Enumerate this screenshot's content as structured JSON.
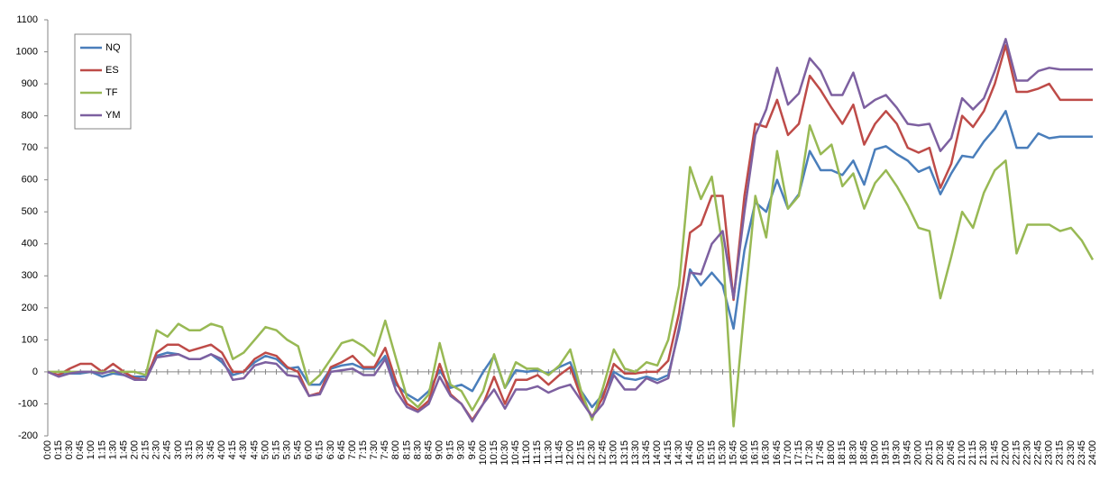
{
  "chart_data": {
    "type": "line",
    "categories": [
      "0:00",
      "0:15",
      "0:30",
      "0:45",
      "1:00",
      "1:15",
      "1:30",
      "1:45",
      "2:00",
      "2:15",
      "2:30",
      "2:45",
      "3:00",
      "3:15",
      "3:30",
      "3:45",
      "4:00",
      "4:15",
      "4:30",
      "4:45",
      "5:00",
      "5:15",
      "5:30",
      "5:45",
      "6:00",
      "6:15",
      "6:30",
      "6:45",
      "7:00",
      "7:15",
      "7:30",
      "7:45",
      "8:00",
      "8:15",
      "8:30",
      "8:45",
      "9:00",
      "9:15",
      "9:30",
      "9:45",
      "10:00",
      "10:15",
      "10:30",
      "10:45",
      "11:00",
      "11:15",
      "11:30",
      "11:45",
      "12:00",
      "12:15",
      "12:30",
      "12:45",
      "13:00",
      "13:15",
      "13:30",
      "13:45",
      "14:00",
      "14:15",
      "14:30",
      "14:45",
      "15:00",
      "15:15",
      "15:30",
      "15:45",
      "16:00",
      "16:15",
      "16:30",
      "16:45",
      "17:00",
      "17:15",
      "17:30",
      "17:45",
      "18:00",
      "18:15",
      "18:30",
      "18:45",
      "19:00",
      "19:15",
      "19:30",
      "19:45",
      "20:00",
      "20:15",
      "20:30",
      "20:45",
      "21:00",
      "21:15",
      "21:30",
      "21:45",
      "22:00",
      "22:15",
      "22:30",
      "22:45",
      "23:00",
      "23:15",
      "23:30",
      "23:45",
      "24:00"
    ],
    "series": [
      {
        "name": "NQ",
        "color": "#4a7ebb",
        "values": [
          0,
          -10,
          -5,
          -5,
          0,
          -15,
          -5,
          -10,
          -15,
          -15,
          50,
          60,
          55,
          40,
          40,
          55,
          30,
          -10,
          0,
          30,
          50,
          40,
          10,
          15,
          -40,
          -40,
          10,
          20,
          25,
          10,
          10,
          50,
          -40,
          -70,
          -90,
          -60,
          5,
          -50,
          -40,
          -60,
          0,
          50,
          -50,
          5,
          0,
          5,
          -5,
          15,
          30,
          -60,
          -110,
          -70,
          0,
          -20,
          -25,
          -15,
          -25,
          -10,
          130,
          320,
          270,
          310,
          270,
          135,
          380,
          530,
          500,
          600,
          510,
          555,
          690,
          630,
          630,
          615,
          660,
          585,
          695,
          705,
          680,
          660,
          625,
          640,
          555,
          620,
          675,
          670,
          720,
          760,
          815,
          700,
          700,
          745,
          730,
          735,
          735,
          735,
          735
        ]
      },
      {
        "name": "ES",
        "color": "#be4b48",
        "values": [
          0,
          -10,
          10,
          25,
          25,
          0,
          25,
          0,
          -20,
          -25,
          60,
          85,
          85,
          65,
          75,
          85,
          60,
          0,
          0,
          40,
          60,
          50,
          15,
          0,
          -75,
          -65,
          15,
          30,
          50,
          15,
          15,
          75,
          -30,
          -100,
          -120,
          -90,
          25,
          -70,
          -100,
          -150,
          -100,
          -15,
          -100,
          -25,
          -25,
          -10,
          -40,
          -10,
          15,
          -80,
          -140,
          -80,
          25,
          -5,
          -5,
          0,
          0,
          35,
          185,
          435,
          460,
          550,
          550,
          225,
          550,
          775,
          765,
          850,
          740,
          775,
          925,
          880,
          825,
          775,
          835,
          710,
          775,
          815,
          775,
          700,
          685,
          700,
          575,
          650,
          800,
          765,
          815,
          900,
          1020,
          875,
          875,
          885,
          900,
          850,
          850,
          850,
          850
        ]
      },
      {
        "name": "TF",
        "color": "#98b954",
        "values": [
          0,
          0,
          0,
          0,
          0,
          0,
          0,
          0,
          0,
          -10,
          130,
          110,
          150,
          130,
          130,
          150,
          140,
          40,
          60,
          100,
          140,
          130,
          100,
          80,
          -40,
          -10,
          40,
          90,
          100,
          80,
          50,
          160,
          40,
          -80,
          -110,
          -70,
          90,
          -40,
          -60,
          -120,
          -60,
          55,
          -50,
          30,
          10,
          10,
          -10,
          20,
          70,
          -60,
          -150,
          -50,
          70,
          10,
          0,
          30,
          20,
          100,
          270,
          640,
          540,
          610,
          390,
          -170,
          200,
          550,
          420,
          690,
          510,
          550,
          770,
          680,
          710,
          580,
          620,
          510,
          590,
          630,
          580,
          520,
          450,
          440,
          230,
          360,
          500,
          450,
          560,
          630,
          660,
          370,
          460,
          460,
          460,
          440,
          450,
          410,
          350
        ]
      },
      {
        "name": "YM",
        "color": "#7d60a0",
        "values": [
          0,
          -15,
          -5,
          0,
          0,
          -5,
          5,
          -10,
          -25,
          -25,
          45,
          50,
          55,
          40,
          40,
          55,
          40,
          -25,
          -20,
          20,
          30,
          25,
          -10,
          -15,
          -75,
          -70,
          0,
          5,
          10,
          -10,
          -10,
          40,
          -60,
          -110,
          -125,
          -100,
          -15,
          -75,
          -100,
          -155,
          -100,
          -55,
          -115,
          -55,
          -55,
          -45,
          -65,
          -50,
          -40,
          -90,
          -140,
          -100,
          -10,
          -55,
          -55,
          -20,
          -35,
          -20,
          140,
          310,
          305,
          400,
          440,
          230,
          500,
          740,
          820,
          950,
          835,
          870,
          980,
          940,
          865,
          865,
          935,
          825,
          850,
          865,
          825,
          775,
          770,
          775,
          690,
          730,
          855,
          820,
          855,
          940,
          1040,
          910,
          910,
          940,
          950,
          945,
          945,
          945,
          945
        ]
      }
    ],
    "ylim": [
      -200,
      1100
    ],
    "yticks": [
      -200,
      -100,
      0,
      100,
      200,
      300,
      400,
      500,
      600,
      700,
      800,
      900,
      1000,
      1100
    ],
    "legend": "upper left"
  }
}
